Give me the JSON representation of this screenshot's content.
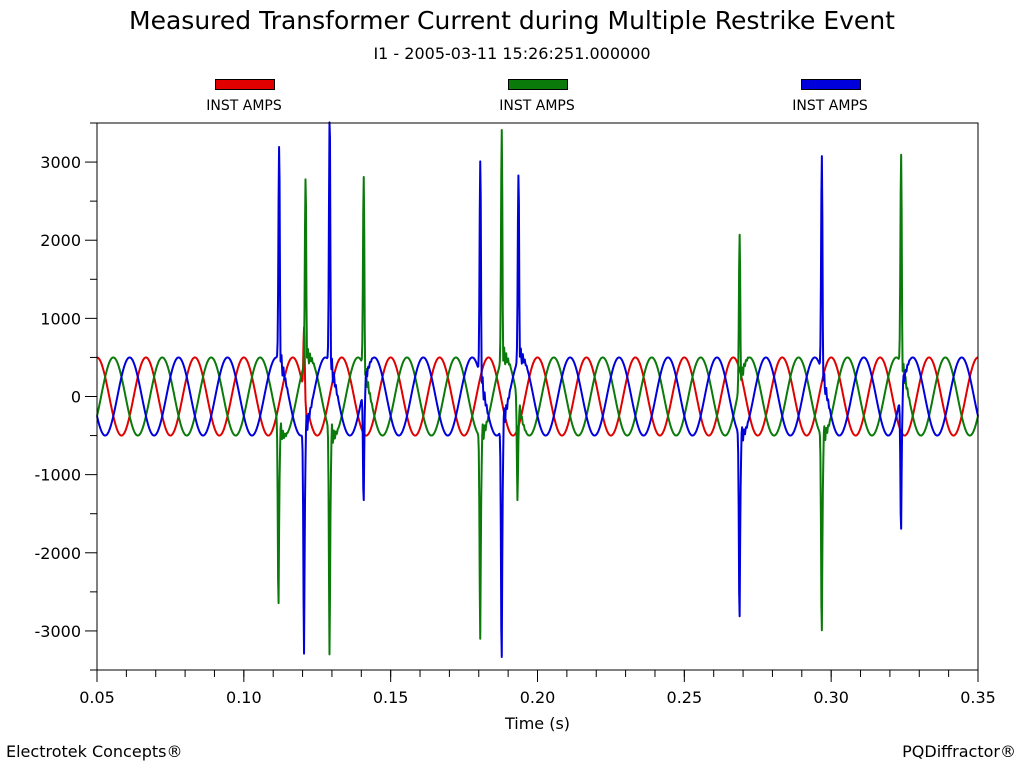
{
  "chart_data": {
    "type": "line",
    "title": "Measured Transformer Current during Multiple Restrike Event",
    "subtitle": "I1 - 2005-03-11 15:26:251.000000",
    "xlabel": "Time (s)",
    "ylabel": "",
    "xlim": [
      0.05,
      0.35
    ],
    "ylim": [
      -3500,
      3500
    ],
    "x_ticks": [
      "0.05",
      "0.10",
      "0.15",
      "0.20",
      "0.25",
      "0.30",
      "0.35"
    ],
    "y_ticks": [
      "3000",
      "2000",
      "1000",
      "0",
      "-1000",
      "-2000",
      "-3000"
    ],
    "grid": false,
    "legend_position": "top",
    "base_frequency_hz": 60,
    "amplitude": 500,
    "series": [
      {
        "name": "INST AMPS",
        "color": "#e00000",
        "phase_deg": 90,
        "spikes": [
          {
            "t": 0.1205,
            "v": 820
          },
          {
            "t": 0.1215,
            "v": -300
          }
        ]
      },
      {
        "name": "INST AMPS",
        "color": "#0a7a0a",
        "phase_deg": -30,
        "spikes": [
          {
            "t": 0.1118,
            "v": -2400
          },
          {
            "t": 0.121,
            "v": 2330
          },
          {
            "t": 0.1292,
            "v": -2900
          },
          {
            "t": 0.1408,
            "v": 2380
          },
          {
            "t": 0.1805,
            "v": -2600
          },
          {
            "t": 0.1878,
            "v": 2880
          },
          {
            "t": 0.1932,
            "v": -1320
          },
          {
            "t": 0.2688,
            "v": 1880
          },
          {
            "t": 0.2968,
            "v": -2620
          },
          {
            "t": 0.3238,
            "v": 2620
          }
        ]
      },
      {
        "name": "INST AMPS",
        "color": "#0000dd",
        "phase_deg": 210,
        "spikes": [
          {
            "t": 0.112,
            "v": 2720
          },
          {
            "t": 0.1205,
            "v": -2830
          },
          {
            "t": 0.1292,
            "v": 3110
          },
          {
            "t": 0.1408,
            "v": -1500
          },
          {
            "t": 0.1805,
            "v": 2750
          },
          {
            "t": 0.1878,
            "v": -3080
          },
          {
            "t": 0.1935,
            "v": 2360
          },
          {
            "t": 0.2688,
            "v": -2440
          },
          {
            "t": 0.2968,
            "v": 2700
          },
          {
            "t": 0.3238,
            "v": -1820
          }
        ]
      }
    ]
  },
  "footer": {
    "left": "Electrotek Concepts®",
    "right": "PQDiffractor®"
  }
}
